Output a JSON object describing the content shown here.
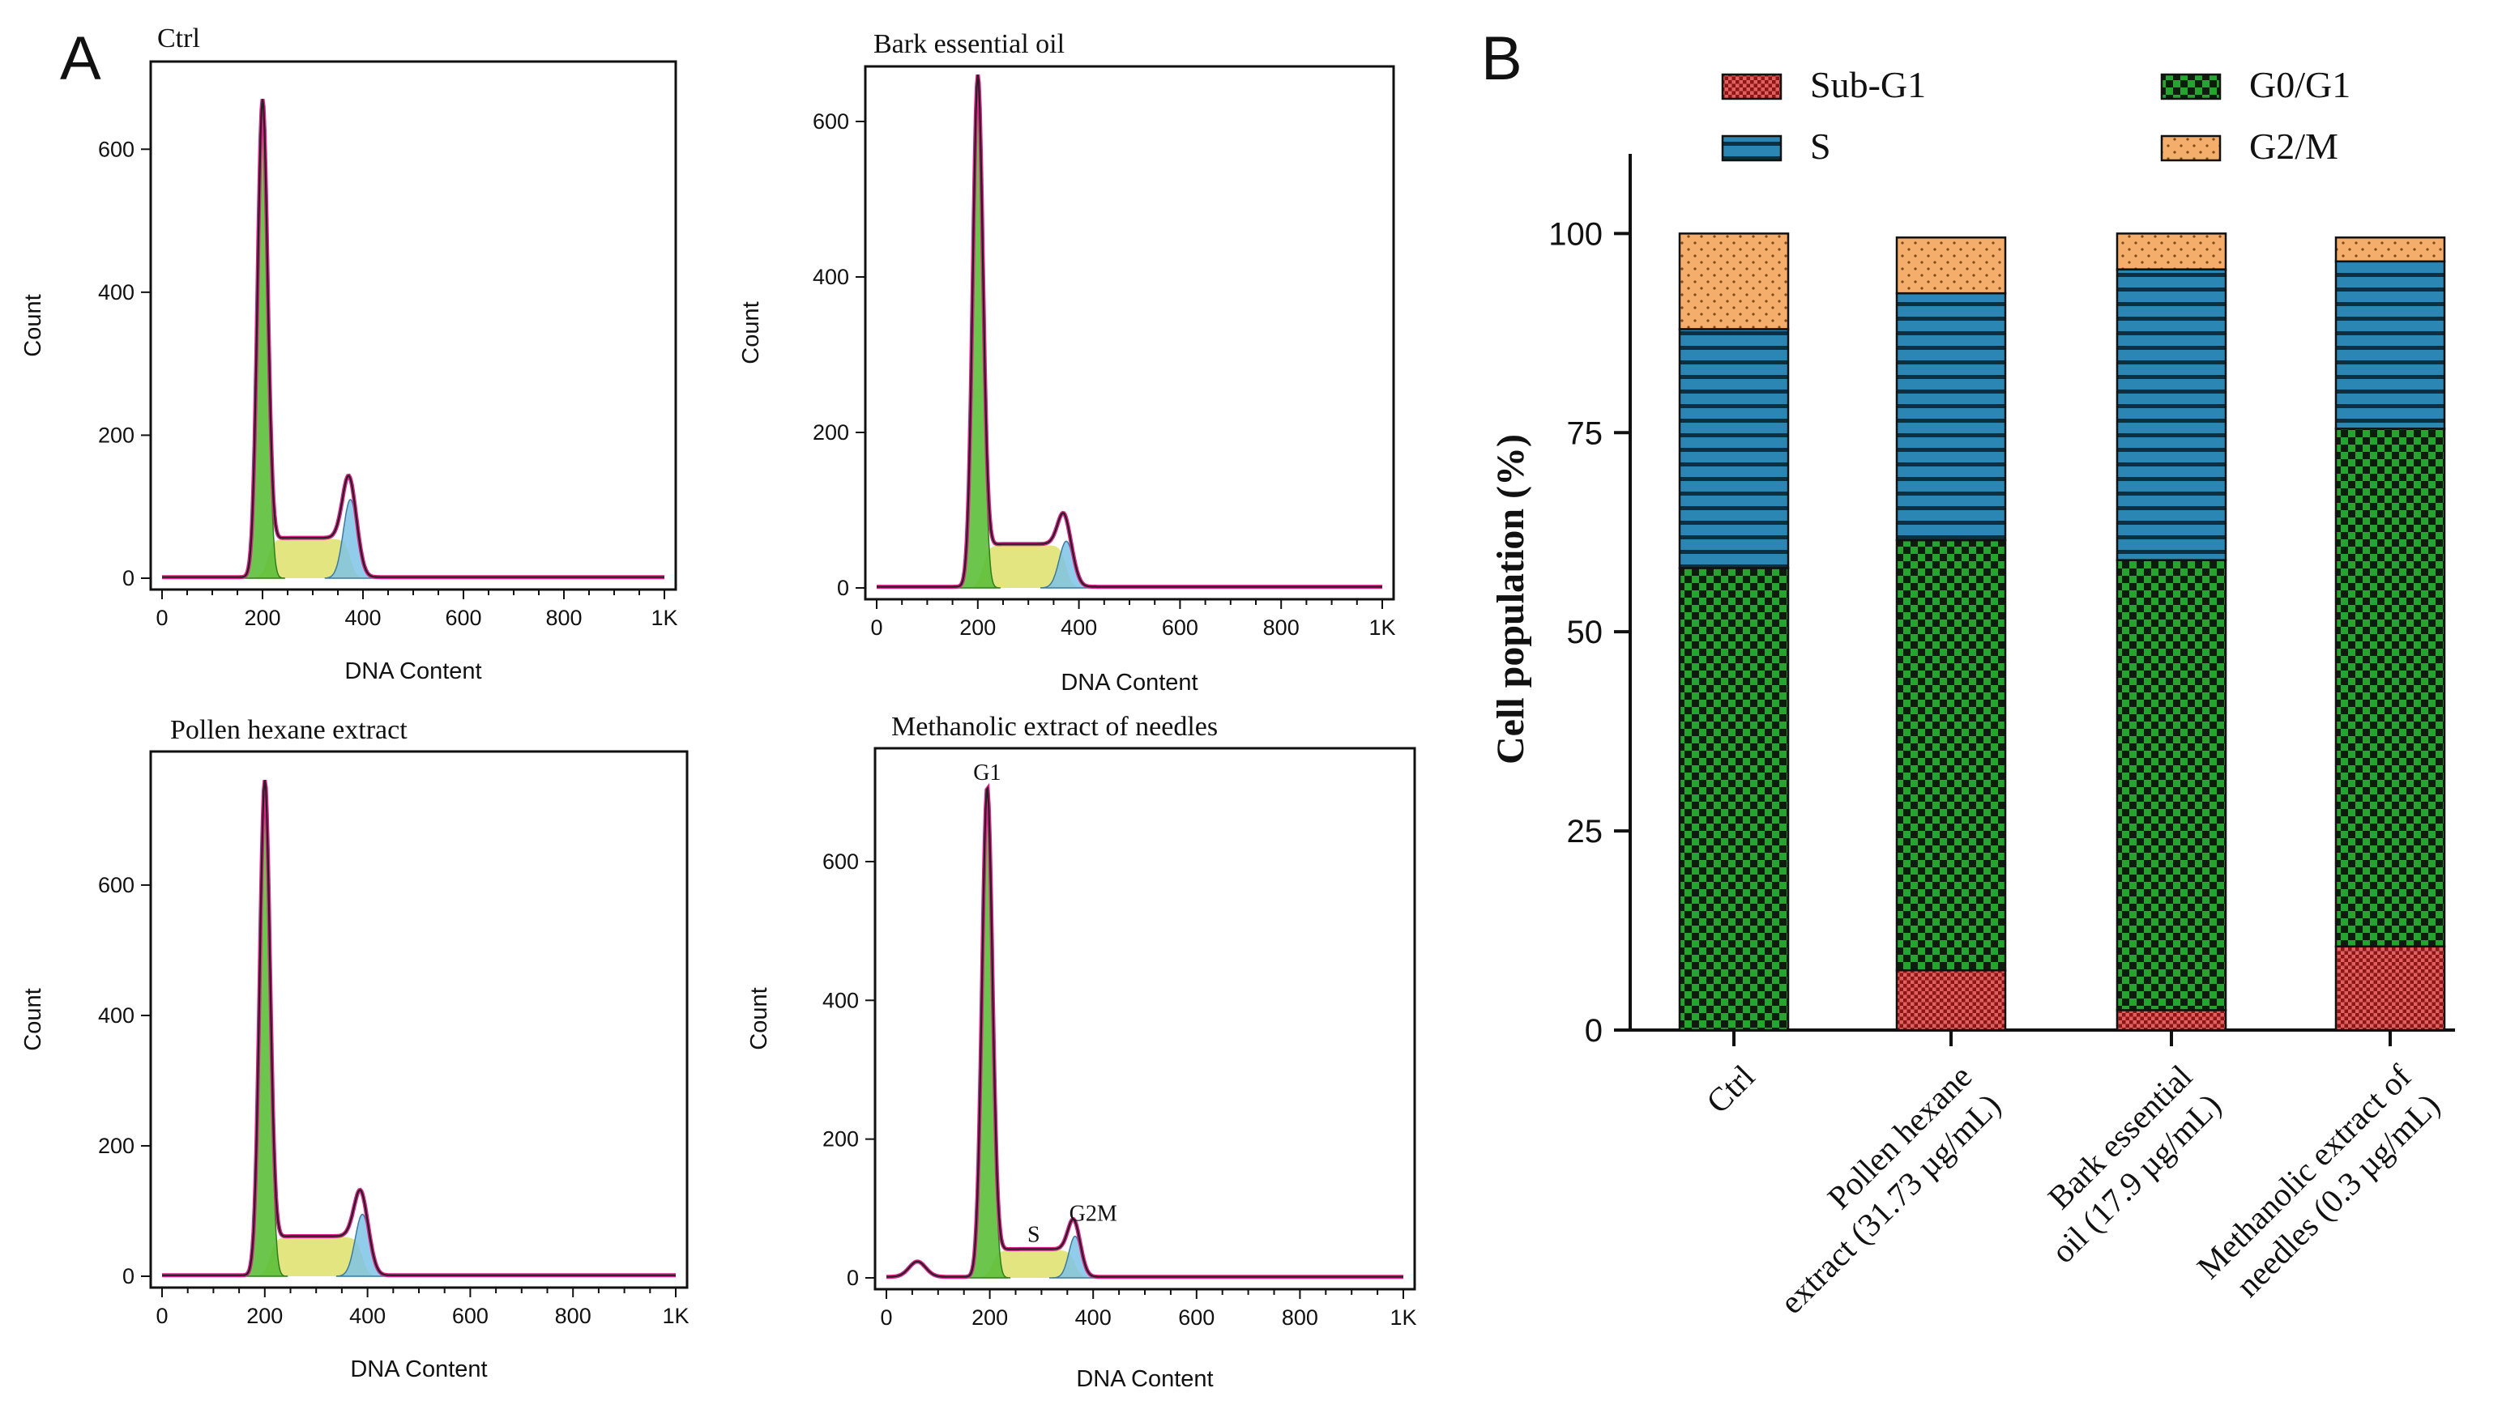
{
  "panel_labels": {
    "a": "A",
    "b": "B"
  },
  "colors": {
    "g1_fill": "#5cbf3a",
    "s_fill": "#dde06a",
    "g2m_fill": "#7ec3e6",
    "envelope": "#e0218a",
    "trace": "#222222",
    "sub_g1": "#b52b2b",
    "g0_g1": "#1f8a2a",
    "s_phase": "#2b86b3",
    "g2_m": "#f3a55e"
  },
  "chart_data": [
    {
      "type": "histogram",
      "title": "Ctrl",
      "xlabel": "DNA Content",
      "ylabel": "Count",
      "xlim": [
        0,
        1000
      ],
      "ylim": [
        0,
        700
      ],
      "xticks": [
        0,
        200,
        400,
        600,
        800,
        1000
      ],
      "xtick_labels": [
        "0",
        "200",
        "400",
        "600",
        "800",
        "1K"
      ],
      "yticks": [
        0,
        200,
        400,
        600
      ],
      "ytick_labels": [
        "0",
        "200",
        "400",
        "600"
      ],
      "profile": {
        "g1_pos": 200,
        "g1_height": 660,
        "g1_width": 10,
        "s_start": 210,
        "s_end": 375,
        "s_height": 55,
        "g2_pos": 375,
        "g2_height": 110,
        "g2_width": 14
      },
      "annotations": []
    },
    {
      "type": "histogram",
      "title": "Bark essential oil",
      "xlabel": "DNA Content",
      "ylabel": "Count",
      "xlim": [
        0,
        1000
      ],
      "ylim": [
        0,
        650
      ],
      "xticks": [
        0,
        200,
        400,
        600,
        800,
        1000
      ],
      "xtick_labels": [
        "0",
        "200",
        "400",
        "600",
        "800",
        "1K"
      ],
      "yticks": [
        0,
        200,
        400,
        600
      ],
      "ytick_labels": [
        "0",
        "200",
        "400",
        "600"
      ],
      "profile": {
        "g1_pos": 200,
        "g1_height": 650,
        "g1_width": 10,
        "s_start": 210,
        "s_end": 375,
        "s_height": 55,
        "g2_pos": 375,
        "g2_height": 60,
        "g2_width": 14
      },
      "annotations": []
    },
    {
      "type": "histogram",
      "title": "Pollen hexane extract",
      "xlabel": "DNA Content",
      "ylabel": "Count",
      "xlim": [
        0,
        1000
      ],
      "ylim": [
        0,
        780
      ],
      "xticks": [
        0,
        200,
        400,
        600,
        800,
        1000
      ],
      "xtick_labels": [
        "0",
        "200",
        "400",
        "600",
        "800",
        "1K"
      ],
      "yticks": [
        0,
        200,
        400,
        600
      ],
      "ytick_labels": [
        "0",
        "200",
        "400",
        "600"
      ],
      "profile": {
        "g1_pos": 200,
        "g1_height": 750,
        "g1_width": 10,
        "s_start": 210,
        "s_end": 390,
        "s_height": 60,
        "g2_pos": 390,
        "g2_height": 95,
        "g2_width": 14
      },
      "annotations": []
    },
    {
      "type": "histogram",
      "title": "Methanolic extract of needles",
      "xlabel": "DNA Content",
      "ylabel": "Count",
      "xlim": [
        0,
        1000
      ],
      "ylim": [
        0,
        740
      ],
      "xticks": [
        0,
        200,
        400,
        600,
        800,
        1000
      ],
      "xtick_labels": [
        "0",
        "200",
        "400",
        "600",
        "800",
        "1K"
      ],
      "yticks": [
        0,
        200,
        400,
        600
      ],
      "ytick_labels": [
        "0",
        "200",
        "400",
        "600"
      ],
      "profile": {
        "g1_pos": 195,
        "g1_height": 700,
        "g1_width": 10,
        "s_start": 205,
        "s_end": 365,
        "s_height": 40,
        "g2_pos": 365,
        "g2_height": 60,
        "g2_width": 12,
        "debris_pos": 60,
        "debris_height": 22
      },
      "annotations": [
        {
          "text": "G1",
          "x": 195,
          "y": 718
        },
        {
          "text": "S",
          "x": 285,
          "y": 52
        },
        {
          "text": "G2M",
          "x": 400,
          "y": 82
        }
      ]
    },
    {
      "type": "bar",
      "stacked": true,
      "ylabel": "Cell population (%)",
      "ylim": [
        0,
        110
      ],
      "yticks": [
        0,
        25,
        50,
        75,
        100
      ],
      "ytick_labels": [
        "0",
        "25",
        "50",
        "75",
        "100"
      ],
      "categories": [
        [
          "Ctrl"
        ],
        [
          "Pollen hexane",
          "extract (31.73 µg/mL)"
        ],
        [
          "Bark essential",
          "oil (17.9 µg/mL)"
        ],
        [
          "Methanolic extract of",
          "needles (0.3 µg/mL)"
        ]
      ],
      "series": [
        {
          "name": "Sub-G1",
          "values": [
            0,
            7.5,
            2.5,
            10.5
          ]
        },
        {
          "name": "G0/G1",
          "values": [
            58,
            54,
            56.5,
            65
          ]
        },
        {
          "name": "S",
          "values": [
            30,
            31,
            36.5,
            21
          ]
        },
        {
          "name": "G2/M",
          "values": [
            12,
            7,
            4.5,
            3
          ]
        }
      ],
      "legend_position": "top"
    }
  ]
}
